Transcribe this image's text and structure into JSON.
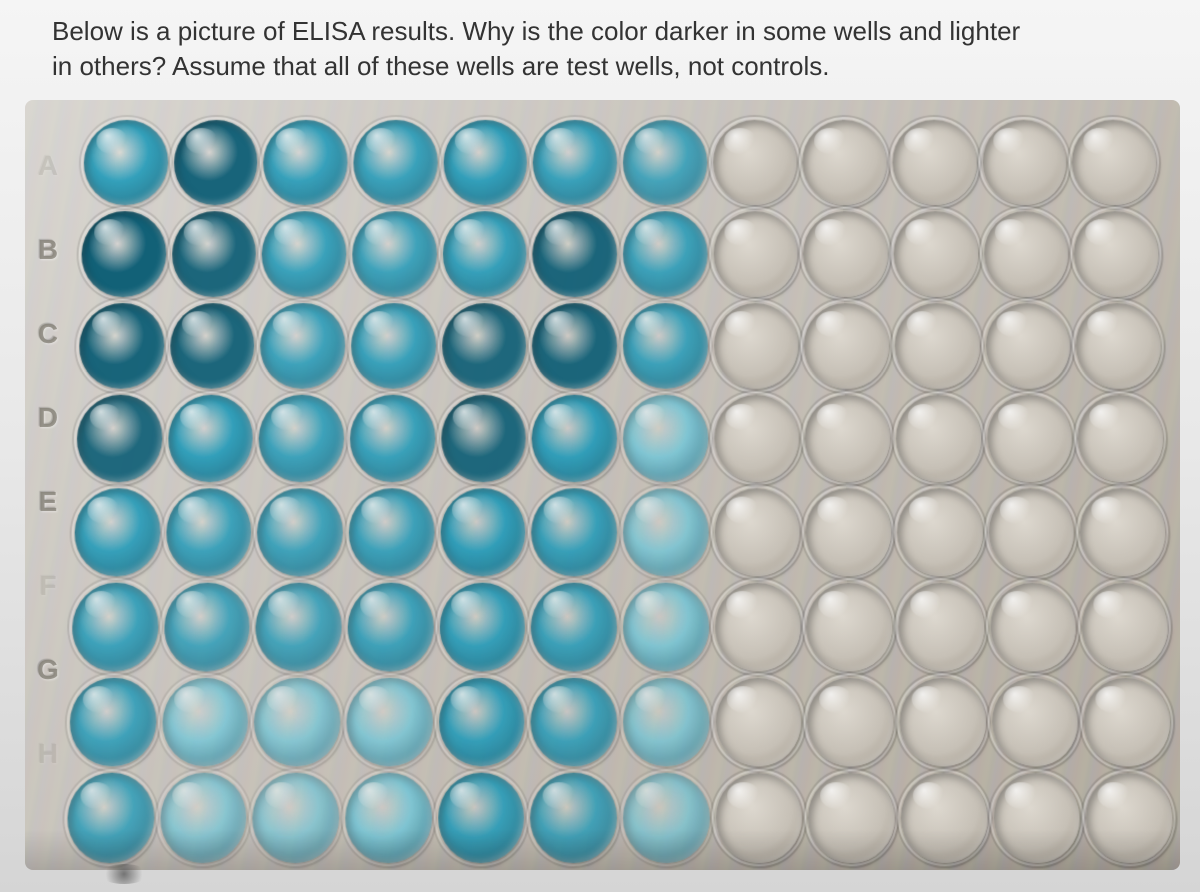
{
  "question": {
    "line1": "Below is a picture of ELISA results.  Why is the color darker in some wells and lighter",
    "line2": "in others?  Assume that all of these wells are test wells, not controls."
  },
  "plate": {
    "row_labels": [
      "A",
      "B",
      "C",
      "D",
      "E",
      "F",
      "G",
      "H"
    ],
    "cols": 12,
    "rows": 8,
    "intensity": [
      [
        0.7,
        0.85,
        0.65,
        0.6,
        0.7,
        0.6,
        0.45,
        0.05,
        0.04,
        0.04,
        0.03,
        0.03
      ],
      [
        0.9,
        0.8,
        0.6,
        0.55,
        0.65,
        0.8,
        0.55,
        0.06,
        0.05,
        0.04,
        0.03,
        0.03
      ],
      [
        0.85,
        0.8,
        0.55,
        0.6,
        0.75,
        0.8,
        0.55,
        0.05,
        0.04,
        0.04,
        0.03,
        0.03
      ],
      [
        0.75,
        0.7,
        0.55,
        0.6,
        0.75,
        0.7,
        0.4,
        0.05,
        0.04,
        0.04,
        0.03,
        0.03
      ],
      [
        0.65,
        0.55,
        0.5,
        0.55,
        0.7,
        0.6,
        0.3,
        0.04,
        0.04,
        0.03,
        0.03,
        0.02
      ],
      [
        0.55,
        0.45,
        0.45,
        0.5,
        0.65,
        0.55,
        0.35,
        0.04,
        0.03,
        0.03,
        0.03,
        0.02
      ],
      [
        0.5,
        0.3,
        0.25,
        0.3,
        0.65,
        0.5,
        0.25,
        0.03,
        0.03,
        0.03,
        0.02,
        0.02
      ],
      [
        0.45,
        0.2,
        0.15,
        0.4,
        0.6,
        0.45,
        0.15,
        0.03,
        0.03,
        0.02,
        0.02,
        0.02
      ]
    ],
    "colors": {
      "dye_dark": "#0a5c74",
      "dye_mid": "#1998b8",
      "dye_light": "#66c7dc",
      "clear_base": "#c6c0b6",
      "clear_light": "#ddd8cf"
    }
  },
  "styling": {
    "page_bg": "#e8e8e8",
    "question_fontsize": 26,
    "question_color": "#333333",
    "plate_bg_gradient": [
      "#d8d6d2",
      "#c8c4be",
      "#b0aaa0"
    ],
    "row_label_color": "rgba(130,125,115,0.75)"
  }
}
